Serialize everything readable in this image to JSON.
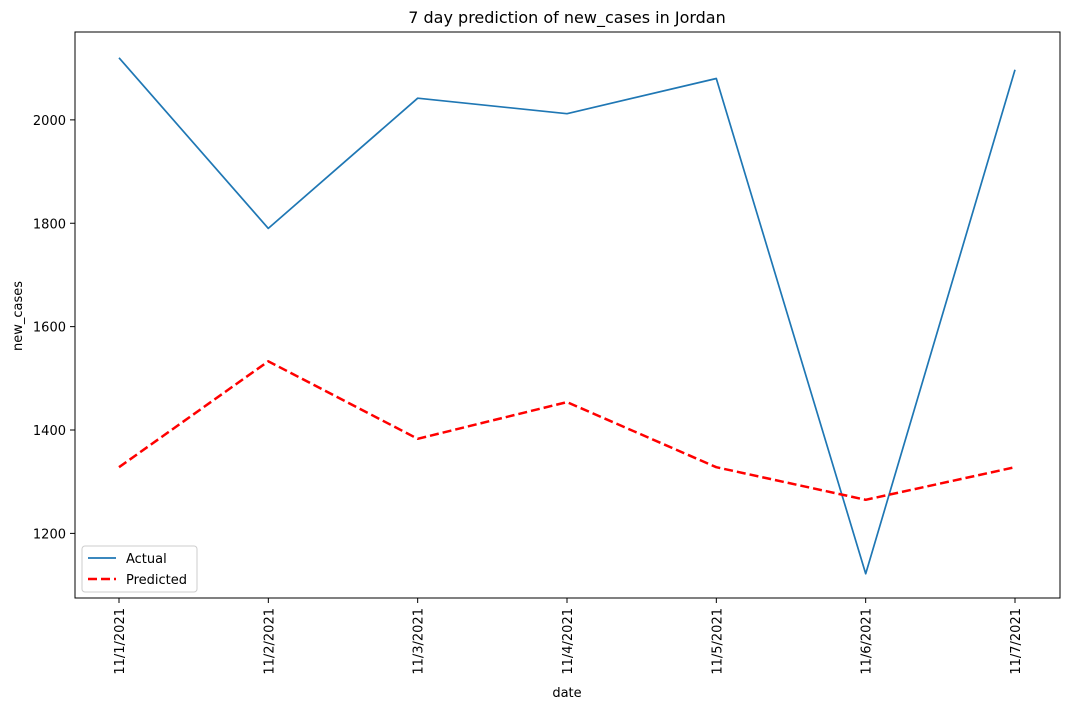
{
  "chart_data": {
    "type": "line",
    "title": "7 day prediction of new_cases in Jordan",
    "xlabel": "date",
    "ylabel": "new_cases",
    "categories": [
      "11/1/2021",
      "11/2/2021",
      "11/3/2021",
      "11/4/2021",
      "11/5/2021",
      "11/6/2021",
      "11/7/2021"
    ],
    "yticks": [
      1200,
      1400,
      1600,
      1800,
      2000
    ],
    "ylim": [
      1075,
      2170
    ],
    "grid": false,
    "legend_position": "lower-left",
    "series": [
      {
        "name": "Actual",
        "values": [
          2120,
          1790,
          2042,
          2012,
          2080,
          1122,
          2097
        ],
        "color": "#1f77b4",
        "style": "solid"
      },
      {
        "name": "Predicted",
        "values": [
          1328,
          1533,
          1383,
          1454,
          1328,
          1265,
          1328
        ],
        "color": "#ff0000",
        "style": "dashed"
      }
    ]
  }
}
